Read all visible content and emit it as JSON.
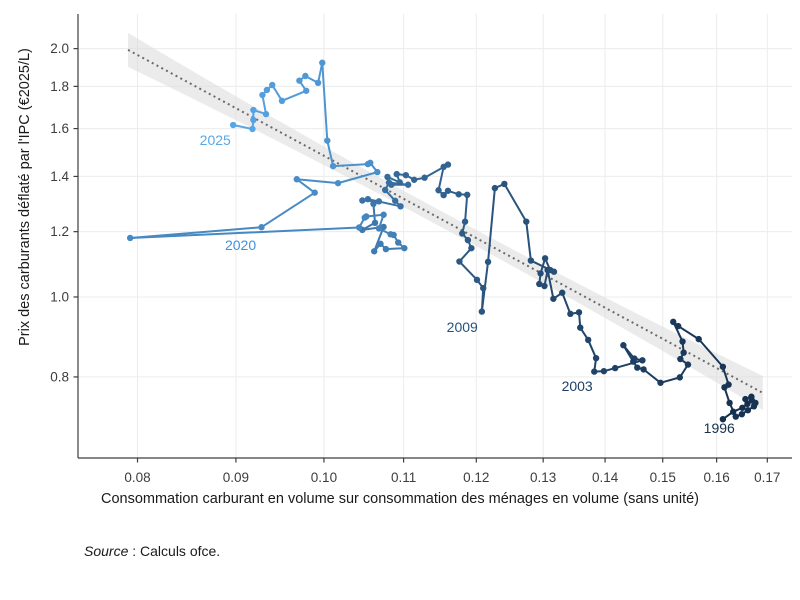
{
  "chart_data": {
    "type": "connected-scatter",
    "title": "",
    "xlabel": "Consommation carburant en volume sur consommation des ménages en volume (sans unité)",
    "ylabel": "Prix des carburants déflaté par l'IPC (€2025/L)",
    "x_scale": "log",
    "y_scale": "log",
    "xlim": [
      0.0745,
      0.1751
    ],
    "ylim": [
      0.638,
      2.203
    ],
    "x_ticks": [
      "0.08",
      "0.09",
      "0.10",
      "0.11",
      "0.12",
      "0.13",
      "0.14",
      "0.15",
      "0.16",
      "0.17"
    ],
    "y_ticks": [
      "0.8",
      "1.0",
      "1.2",
      "1.4",
      "1.6",
      "1.8",
      "2.0"
    ],
    "grid": true,
    "legend": "none",
    "series_note": "single quarterly time-path 1996 to 2025, point order = time order, color darkens with age",
    "points": [
      [
        0.1612,
        0.711
      ],
      [
        0.1632,
        0.726
      ],
      [
        0.165,
        0.734
      ],
      [
        0.166,
        0.742
      ],
      [
        0.1656,
        0.752
      ],
      [
        0.1668,
        0.757
      ],
      [
        0.1676,
        0.744
      ],
      [
        0.1669,
        0.749
      ],
      [
        0.1673,
        0.737
      ],
      [
        0.1661,
        0.729
      ],
      [
        0.1649,
        0.721
      ],
      [
        0.1637,
        0.716
      ],
      [
        0.1625,
        0.744
      ],
      [
        0.1615,
        0.777
      ],
      [
        0.1623,
        0.783
      ],
      [
        0.1612,
        0.823
      ],
      [
        0.1566,
        0.889
      ],
      [
        0.1528,
        0.922
      ],
      [
        0.1519,
        0.933
      ],
      [
        0.1536,
        0.883
      ],
      [
        0.1538,
        0.856
      ],
      [
        0.1532,
        0.841
      ],
      [
        0.1546,
        0.828
      ],
      [
        0.1531,
        0.799
      ],
      [
        0.1496,
        0.787
      ],
      [
        0.1466,
        0.817
      ],
      [
        0.1455,
        0.821
      ],
      [
        0.1448,
        0.835
      ],
      [
        0.1431,
        0.874
      ],
      [
        0.145,
        0.842
      ],
      [
        0.1464,
        0.838
      ],
      [
        0.1417,
        0.82
      ],
      [
        0.1398,
        0.813
      ],
      [
        0.1382,
        0.812
      ],
      [
        0.1385,
        0.843
      ],
      [
        0.1372,
        0.887
      ],
      [
        0.1359,
        0.918
      ],
      [
        0.1357,
        0.958
      ],
      [
        0.1343,
        0.954
      ],
      [
        0.133,
        1.012
      ],
      [
        0.1316,
        0.995
      ],
      [
        0.1307,
        1.078
      ],
      [
        0.1302,
        1.031
      ],
      [
        0.1294,
        1.037
      ],
      [
        0.1296,
        1.068
      ],
      [
        0.1303,
        1.114
      ],
      [
        0.1311,
        1.078
      ],
      [
        0.1317,
        1.073
      ],
      [
        0.1281,
        1.107
      ],
      [
        0.1274,
        1.234
      ],
      [
        0.1241,
        1.371
      ],
      [
        0.1227,
        1.355
      ],
      [
        0.1217,
        1.103
      ],
      [
        0.1208,
        0.96
      ],
      [
        0.121,
        1.025
      ],
      [
        0.1201,
        1.049
      ],
      [
        0.1176,
        1.104
      ],
      [
        0.1193,
        1.146
      ],
      [
        0.1188,
        1.172
      ],
      [
        0.118,
        1.194
      ],
      [
        0.1184,
        1.234
      ],
      [
        0.1187,
        1.33
      ],
      [
        0.1175,
        1.332
      ],
      [
        0.116,
        1.345
      ],
      [
        0.1154,
        1.329
      ],
      [
        0.1147,
        1.347
      ],
      [
        0.1154,
        1.438
      ],
      [
        0.116,
        1.447
      ],
      [
        0.1128,
        1.395
      ],
      [
        0.1114,
        1.387
      ],
      [
        0.1103,
        1.405
      ],
      [
        0.1091,
        1.409
      ],
      [
        0.1095,
        1.377
      ],
      [
        0.1079,
        1.398
      ],
      [
        0.1084,
        1.368
      ],
      [
        0.1106,
        1.368
      ],
      [
        0.1081,
        1.376
      ],
      [
        0.1076,
        1.348
      ],
      [
        0.1089,
        1.308
      ],
      [
        0.1096,
        1.288
      ],
      [
        0.1054,
        1.314
      ],
      [
        0.1047,
        1.309
      ],
      [
        0.1068,
        1.306
      ],
      [
        0.1061,
        1.297
      ],
      [
        0.1063,
        1.23
      ],
      [
        0.1047,
        1.206
      ],
      [
        0.1074,
        1.216
      ],
      [
        0.1062,
        1.136
      ],
      [
        0.107,
        1.16
      ],
      [
        0.1077,
        1.143
      ],
      [
        0.1101,
        1.146
      ],
      [
        0.1093,
        1.164
      ],
      [
        0.1087,
        1.189
      ],
      [
        0.1083,
        1.191
      ],
      [
        0.1068,
        1.211
      ],
      [
        0.1074,
        1.258
      ],
      [
        0.1052,
        1.252
      ],
      [
        0.105,
        1.248
      ],
      [
        0.1043,
        1.214
      ],
      [
        0.0793,
        1.179
      ],
      [
        0.0928,
        1.215
      ],
      [
        0.0989,
        1.338
      ],
      [
        0.0968,
        1.389
      ],
      [
        0.1017,
        1.374
      ],
      [
        0.1066,
        1.417
      ],
      [
        0.1057,
        1.454
      ],
      [
        0.1054,
        1.449
      ],
      [
        0.1011,
        1.441
      ],
      [
        0.1004,
        1.547
      ],
      [
        0.0998,
        1.923
      ],
      [
        0.0993,
        1.818
      ],
      [
        0.0978,
        1.853
      ],
      [
        0.0971,
        1.829
      ],
      [
        0.0979,
        1.778
      ],
      [
        0.0951,
        1.729
      ],
      [
        0.094,
        1.807
      ],
      [
        0.0934,
        1.782
      ],
      [
        0.0929,
        1.757
      ],
      [
        0.0933,
        1.666
      ],
      [
        0.0919,
        1.685
      ],
      [
        0.0919,
        1.639
      ],
      [
        0.0918,
        1.598
      ],
      [
        0.0897,
        1.616
      ]
    ],
    "annotations": [
      {
        "label": "1996",
        "x": 0.1605,
        "y": 0.694,
        "color": "#16304E"
      },
      {
        "label": "2003",
        "x": 0.1354,
        "y": 0.78,
        "color": "#1D3F68"
      },
      {
        "label": "2009",
        "x": 0.118,
        "y": 0.92,
        "color": "#27517D"
      },
      {
        "label": "2020",
        "x": 0.0905,
        "y": 1.156,
        "color": "#4392D8"
      },
      {
        "label": "2025",
        "x": 0.0878,
        "y": 1.55,
        "color": "#58A7E7"
      }
    ],
    "trend": {
      "style": "dotted",
      "x1": 0.0791,
      "y1": 1.993,
      "x2": 0.1691,
      "y2": 0.765,
      "color": "#6A6A6A",
      "band_color": "#DBDBDB"
    },
    "colors": {
      "path_start": "#152F4E",
      "path_end": "#57A6E8"
    },
    "style": {
      "grid_color": "#ECECEC",
      "spine_color": "#3D3D3D",
      "tick_label_color": "#3D3D3D"
    }
  },
  "axes": {
    "x_title": "Consommation carburant en volume sur consommation des ménages en volume (sans unité)",
    "y_title": "Prix des carburants déflaté par l'IPC (€2025/L)"
  },
  "source": {
    "label": "Source",
    "rest": " : Calculs ofce."
  }
}
